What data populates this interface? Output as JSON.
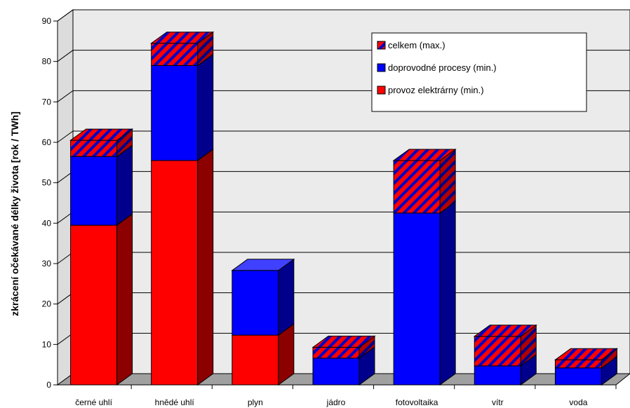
{
  "chart_data": {
    "type": "bar",
    "stacked": true,
    "three_d": true,
    "title": "",
    "xlabel": "",
    "ylabel": "zkrácení očekávané délky života [rok / TWh]",
    "ylim": [
      0,
      90
    ],
    "yticks": [
      0,
      10,
      20,
      30,
      40,
      50,
      60,
      70,
      80,
      90
    ],
    "grid": true,
    "legend_position": "top-right",
    "categories": [
      "černé uhlí",
      "hnědé uhlí",
      "plyn",
      "jádro",
      "fotovoltaika",
      "vítr",
      "voda"
    ],
    "series": [
      {
        "name": "provoz elektrárny (min.)",
        "color": "#ff0000",
        "pattern": "solid",
        "values": [
          39.5,
          55.5,
          12.3,
          0,
          0,
          0,
          0
        ]
      },
      {
        "name": "doprovodné procesy (min.)",
        "color": "#0000ff",
        "pattern": "solid",
        "values": [
          17,
          23.5,
          16,
          6.6,
          42.5,
          4.7,
          4.2
        ]
      },
      {
        "name": "celkem (max.)",
        "color": "#ff0000",
        "pattern": "hatched",
        "values": [
          4,
          5.5,
          0,
          2.7,
          13,
          7.3,
          2
        ]
      }
    ]
  }
}
